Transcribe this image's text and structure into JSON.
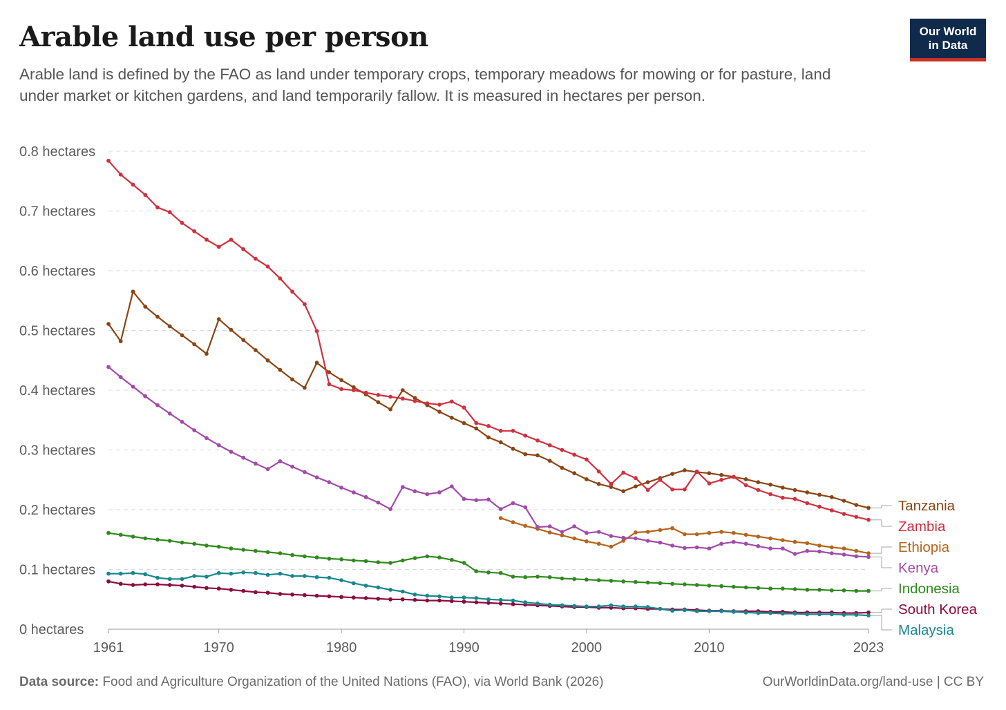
{
  "header": {
    "title": "Arable land use per person",
    "subtitle": "Arable land is defined by the FAO as land under temporary crops, temporary meadows for mowing or for pasture, land under market or kitchen gardens, and land temporarily fallow. It is measured in hectares per person.",
    "logo_line1": "Our World",
    "logo_line2": "in Data"
  },
  "footer": {
    "source_label": "Data source:",
    "source_text": "Food and Agriculture Organization of the United Nations (FAO), via World Bank (2026)",
    "license": "OurWorldinData.org/land-use | CC BY"
  },
  "chart_data": {
    "type": "line",
    "title": "Arable land use per person",
    "xlabel": "",
    "ylabel": "",
    "xlim": [
      1961,
      2023
    ],
    "ylim": [
      0,
      0.8
    ],
    "x_ticks": [
      1961,
      1970,
      1980,
      1990,
      2000,
      2010,
      2023
    ],
    "y_ticks": [
      {
        "value": 0,
        "label": "0 hectares"
      },
      {
        "value": 0.1,
        "label": "0.1 hectares"
      },
      {
        "value": 0.2,
        "label": "0.2 hectares"
      },
      {
        "value": 0.3,
        "label": "0.3 hectares"
      },
      {
        "value": 0.4,
        "label": "0.4 hectares"
      },
      {
        "value": 0.5,
        "label": "0.5 hectares"
      },
      {
        "value": 0.6,
        "label": "0.6 hectares"
      },
      {
        "value": 0.7,
        "label": "0.7 hectares"
      },
      {
        "value": 0.8,
        "label": "0.8 hectares"
      }
    ],
    "grid": "horizontal dashed",
    "legend": "right, labels at line ends",
    "series": [
      {
        "name": "Tanzania",
        "color": "#8b4513",
        "start": 1961,
        "values": [
          0.511,
          0.482,
          0.565,
          0.54,
          0.523,
          0.507,
          0.492,
          0.477,
          0.461,
          0.519,
          0.501,
          0.484,
          0.467,
          0.45,
          0.434,
          0.418,
          0.404,
          0.446,
          0.43,
          0.417,
          0.405,
          0.393,
          0.38,
          0.368,
          0.4,
          0.387,
          0.375,
          0.364,
          0.354,
          0.345,
          0.336,
          0.321,
          0.313,
          0.302,
          0.293,
          0.291,
          0.282,
          0.27,
          0.261,
          0.251,
          0.243,
          0.238,
          0.231,
          0.239,
          0.246,
          0.253,
          0.26,
          0.266,
          0.263,
          0.261,
          0.258,
          0.255,
          0.251,
          0.246,
          0.242,
          0.237,
          0.233,
          0.229,
          0.225,
          0.221,
          0.215,
          0.208,
          0.203
        ]
      },
      {
        "name": "Zambia",
        "color": "#d0303f",
        "start": 1961,
        "values": [
          0.784,
          0.761,
          0.744,
          0.727,
          0.706,
          0.698,
          0.68,
          0.666,
          0.652,
          0.64,
          0.652,
          0.636,
          0.62,
          0.607,
          0.587,
          0.565,
          0.544,
          0.499,
          0.41,
          0.402,
          0.4,
          0.396,
          0.392,
          0.389,
          0.386,
          0.382,
          0.378,
          0.376,
          0.381,
          0.371,
          0.345,
          0.34,
          0.332,
          0.332,
          0.324,
          0.316,
          0.308,
          0.3,
          0.292,
          0.284,
          0.264,
          0.243,
          0.262,
          0.253,
          0.233,
          0.25,
          0.234,
          0.234,
          0.264,
          0.244,
          0.25,
          0.255,
          0.241,
          0.233,
          0.226,
          0.22,
          0.218,
          0.211,
          0.205,
          0.199,
          0.193,
          0.188,
          0.183
        ]
      },
      {
        "name": "Ethiopia",
        "color": "#b5651d",
        "start": 1993,
        "values": [
          0.186,
          0.179,
          0.173,
          0.168,
          0.162,
          0.157,
          0.152,
          0.147,
          0.143,
          0.138,
          0.148,
          0.162,
          0.163,
          0.166,
          0.169,
          0.159,
          0.159,
          0.161,
          0.163,
          0.161,
          0.158,
          0.155,
          0.152,
          0.149,
          0.146,
          0.144,
          0.14,
          0.137,
          0.135,
          0.131,
          0.127
        ]
      },
      {
        "name": "Kenya",
        "color": "#a24ba9",
        "start": 1961,
        "values": [
          0.439,
          0.422,
          0.406,
          0.39,
          0.375,
          0.361,
          0.347,
          0.333,
          0.32,
          0.308,
          0.297,
          0.287,
          0.277,
          0.268,
          0.281,
          0.272,
          0.263,
          0.254,
          0.246,
          0.237,
          0.229,
          0.221,
          0.212,
          0.201,
          0.238,
          0.231,
          0.226,
          0.229,
          0.239,
          0.218,
          0.216,
          0.217,
          0.201,
          0.211,
          0.204,
          0.171,
          0.172,
          0.163,
          0.172,
          0.161,
          0.163,
          0.156,
          0.153,
          0.152,
          0.148,
          0.145,
          0.14,
          0.136,
          0.137,
          0.135,
          0.143,
          0.146,
          0.143,
          0.139,
          0.135,
          0.135,
          0.126,
          0.131,
          0.13,
          0.127,
          0.125,
          0.122,
          0.121
        ]
      },
      {
        "name": "Indonesia",
        "color": "#2f8a1d",
        "start": 1961,
        "values": [
          0.161,
          0.158,
          0.155,
          0.152,
          0.15,
          0.148,
          0.145,
          0.143,
          0.14,
          0.138,
          0.135,
          0.133,
          0.131,
          0.129,
          0.127,
          0.124,
          0.122,
          0.12,
          0.118,
          0.117,
          0.115,
          0.114,
          0.112,
          0.111,
          0.115,
          0.119,
          0.122,
          0.12,
          0.116,
          0.111,
          0.097,
          0.095,
          0.094,
          0.088,
          0.087,
          0.088,
          0.087,
          0.085,
          0.084,
          0.083,
          0.082,
          0.081,
          0.08,
          0.079,
          0.078,
          0.077,
          0.076,
          0.075,
          0.074,
          0.073,
          0.072,
          0.071,
          0.07,
          0.069,
          0.068,
          0.068,
          0.067,
          0.066,
          0.066,
          0.065,
          0.065,
          0.064,
          0.064
        ]
      },
      {
        "name": "South Korea",
        "color": "#8b0a3f",
        "start": 1961,
        "values": [
          0.08,
          0.076,
          0.074,
          0.075,
          0.075,
          0.074,
          0.073,
          0.071,
          0.069,
          0.068,
          0.066,
          0.064,
          0.062,
          0.061,
          0.059,
          0.058,
          0.057,
          0.056,
          0.055,
          0.054,
          0.053,
          0.052,
          0.051,
          0.05,
          0.05,
          0.049,
          0.048,
          0.048,
          0.047,
          0.046,
          0.045,
          0.044,
          0.043,
          0.042,
          0.041,
          0.04,
          0.039,
          0.038,
          0.037,
          0.037,
          0.036,
          0.036,
          0.035,
          0.035,
          0.034,
          0.034,
          0.033,
          0.033,
          0.032,
          0.031,
          0.031,
          0.03,
          0.03,
          0.03,
          0.029,
          0.029,
          0.028,
          0.028,
          0.028,
          0.028,
          0.027,
          0.027,
          0.028
        ]
      },
      {
        "name": "Malaysia",
        "color": "#18878f",
        "start": 1961,
        "values": [
          0.093,
          0.093,
          0.094,
          0.092,
          0.086,
          0.084,
          0.084,
          0.089,
          0.088,
          0.094,
          0.093,
          0.095,
          0.094,
          0.091,
          0.093,
          0.089,
          0.089,
          0.087,
          0.086,
          0.082,
          0.077,
          0.073,
          0.07,
          0.066,
          0.063,
          0.058,
          0.056,
          0.055,
          0.053,
          0.053,
          0.052,
          0.05,
          0.049,
          0.048,
          0.045,
          0.043,
          0.041,
          0.04,
          0.039,
          0.038,
          0.038,
          0.04,
          0.038,
          0.038,
          0.037,
          0.034,
          0.031,
          0.032,
          0.03,
          0.03,
          0.03,
          0.029,
          0.028,
          0.027,
          0.027,
          0.026,
          0.026,
          0.025,
          0.025,
          0.025,
          0.024,
          0.024,
          0.023
        ]
      }
    ]
  }
}
